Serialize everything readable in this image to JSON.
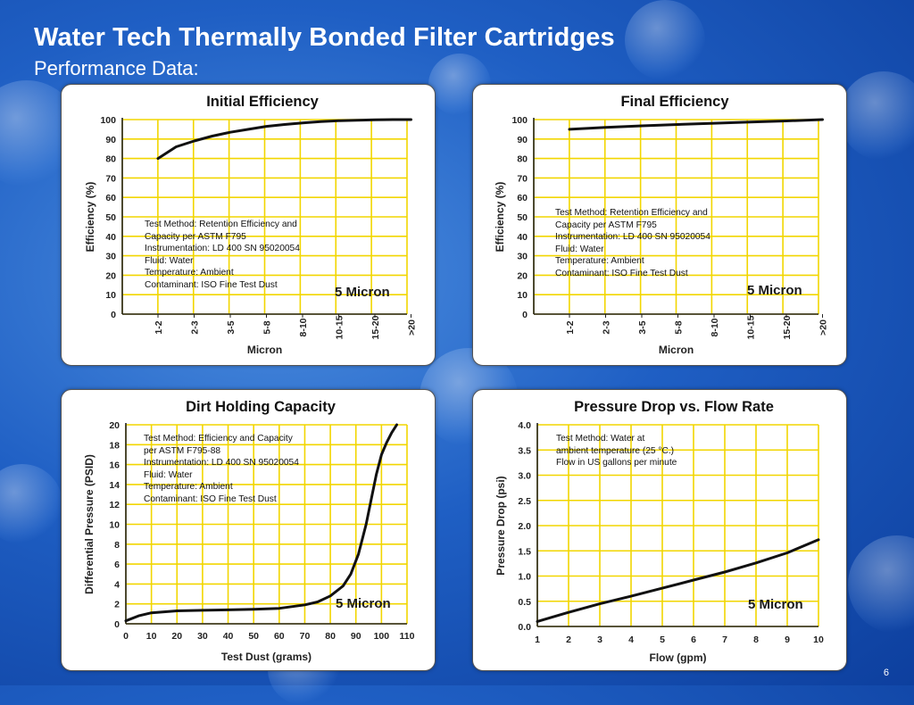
{
  "slide": {
    "title": "Water Tech Thermally Bonded Filter Cartridges",
    "subtitle": "Performance Data:",
    "page_number": "6"
  },
  "chart_data": [
    {
      "id": "initial",
      "type": "line",
      "title": "Initial Efficiency",
      "xlabel": "Micron",
      "ylabel": "Efficiency (%)",
      "categories": [
        "1-2",
        "2-3",
        "3-5",
        "5-8",
        "8-10",
        "10-15",
        "15-20",
        ">20"
      ],
      "yticks": [
        "0",
        "10",
        "20",
        "30",
        "40",
        "50",
        "60",
        "70",
        "80",
        "90",
        "100"
      ],
      "ylim": [
        0,
        100
      ],
      "x": [
        0,
        0.5,
        1,
        1.5,
        2,
        2.5,
        3,
        3.5,
        4,
        4.5,
        5,
        5.5,
        6,
        6.5,
        7
      ],
      "values": [
        80,
        86,
        89,
        91.5,
        93.5,
        95,
        96.5,
        97.5,
        98.3,
        99,
        99.4,
        99.7,
        99.9,
        100,
        100
      ],
      "label": "5 Micron",
      "grid": true,
      "note": "Test Method: Retention Efficiency and\nCapacity per ASTM F795\nInstrumentation: LD 400 SN 95020054\nFluid: Water\nTemperature: Ambient\nContaminant: ISO Fine Test Dust"
    },
    {
      "id": "final",
      "type": "line",
      "title": "Final Efficiency",
      "xlabel": "Micron",
      "ylabel": "Efficiency (%)",
      "categories": [
        "1-2",
        "2-3",
        "3-5",
        "5-8",
        "8-10",
        "10-15",
        "15-20",
        ">20"
      ],
      "yticks": [
        "0",
        "10",
        "20",
        "30",
        "40",
        "50",
        "60",
        "70",
        "80",
        "90",
        "100"
      ],
      "ylim": [
        0,
        100
      ],
      "x": [
        0,
        1,
        2,
        3,
        4,
        5,
        6,
        7
      ],
      "values": [
        95,
        96,
        96.8,
        97.5,
        98.1,
        98.7,
        99.3,
        100
      ],
      "label": "5 Micron",
      "grid": true,
      "note": "Test Method: Retention Efficiency and\nCapacity per ASTM F795\nInstrumentation: LD 400 SN 95020054\nFluid: Water\nTemperature: Ambient\nContaminant: ISO Fine Test Dust"
    },
    {
      "id": "dirt",
      "type": "line",
      "title": "Dirt Holding Capacity",
      "xlabel": "Test Dust (grams)",
      "ylabel": "Differential Pressure (PSID)",
      "categories": [
        "0",
        "10",
        "20",
        "30",
        "40",
        "50",
        "60",
        "70",
        "80",
        "90",
        "100",
        "110"
      ],
      "yticks": [
        "0",
        "2",
        "4",
        "6",
        "8",
        "10",
        "12",
        "14",
        "16",
        "18",
        "20"
      ],
      "xlim": [
        0,
        110
      ],
      "ylim": [
        0,
        20
      ],
      "x": [
        0,
        5,
        10,
        20,
        30,
        40,
        50,
        60,
        70,
        75,
        80,
        85,
        88,
        91,
        94,
        96,
        98,
        100,
        102,
        104,
        106
      ],
      "values": [
        0.3,
        0.8,
        1.1,
        1.3,
        1.35,
        1.4,
        1.45,
        1.55,
        1.9,
        2.2,
        2.8,
        3.8,
        5.0,
        7.0,
        10.0,
        12.5,
        15.0,
        17.0,
        18.2,
        19.2,
        20
      ],
      "label": "5 Micron",
      "grid": true,
      "note": "Test Method: Efficiency and Capacity\nper ASTM F795-88\nInstrumentation: LD 400 SN 95020054\nFluid: Water\nTemperature: Ambient\nContaminant: ISO Fine Test Dust"
    },
    {
      "id": "pressure",
      "type": "line",
      "title": "Pressure Drop vs. Flow Rate",
      "xlabel": "Flow (gpm)",
      "ylabel": "Pressure Drop (psi)",
      "categories": [
        "1",
        "2",
        "3",
        "4",
        "5",
        "6",
        "7",
        "8",
        "9",
        "10"
      ],
      "yticks": [
        "0.0",
        "0.5",
        "1.0",
        "1.5",
        "2.0",
        "2.5",
        "3.0",
        "3.5",
        "4.0"
      ],
      "xlim": [
        1,
        10
      ],
      "ylim": [
        0,
        4
      ],
      "x": [
        1,
        2,
        3,
        4,
        5,
        6,
        7,
        8,
        9,
        10
      ],
      "values": [
        0.1,
        0.28,
        0.45,
        0.6,
        0.76,
        0.92,
        1.08,
        1.26,
        1.46,
        1.72
      ],
      "label": "5 Micron",
      "grid": true,
      "note": "Test Method: Water at\nambient temperature (25 °C.)\nFlow in US gallons per minute"
    }
  ]
}
